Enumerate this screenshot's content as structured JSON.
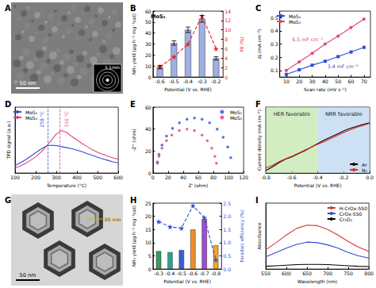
{
  "chart_data": [
    {
      "type": "image",
      "title": "A",
      "scale_bar": "50 nm",
      "inset": "5 1/nm"
    },
    {
      "type": "bar",
      "title": "B",
      "categories": [
        "-0.6",
        "-0.5",
        "-0.4",
        "-0.3",
        "-0.2"
      ],
      "x_label": "Potential (V vs. RHE)",
      "y_label": "NH₃ yield (μg h⁻¹ mg⁻¹cat)",
      "y2_label": "FE (%)",
      "ylim": [
        0,
        60
      ],
      "yticks": [
        0,
        10,
        20,
        30,
        40,
        50,
        60
      ],
      "y2lim": [
        0,
        14
      ],
      "y2ticks": [
        0,
        2,
        4,
        6,
        8,
        10,
        12,
        14
      ],
      "annotations": [
        "MoS₃"
      ],
      "grid": false,
      "series": [
        {
          "type": "bar",
          "color": "#9fb0e3",
          "values": [
            9,
            31,
            43,
            53,
            17
          ],
          "errors": [
            1.5,
            2,
            2.5,
            3,
            1.5
          ]
        },
        {
          "type": "line",
          "axis": "y2",
          "color": "#e8251f",
          "marker": "star",
          "line_style": "dashed",
          "values": [
            2.2,
            4.3,
            7.0,
            13.0,
            6.0
          ]
        }
      ]
    },
    {
      "type": "line",
      "title": "C",
      "x_label": "Scan rate (mV s⁻¹)",
      "y_label": "Δj (mA cm⁻²)",
      "x": [
        10,
        20,
        30,
        40,
        50,
        60,
        70
      ],
      "xlim": [
        5,
        75
      ],
      "xticks": [
        10,
        20,
        30,
        40,
        50,
        60,
        70
      ],
      "ylim": [
        0.05,
        0.55
      ],
      "yticks": [
        0.1,
        0.2,
        0.3,
        0.4,
        0.5
      ],
      "legend": "upper left",
      "grid": false,
      "annotations": [
        {
          "text": "6.5 mF cm⁻²",
          "series": "MoS₃"
        },
        {
          "text": "3.4 mF cm⁻²",
          "series": "MoS₂"
        }
      ],
      "series": [
        {
          "name": "MoS₂",
          "color": "#2b4fd6",
          "marker": "square",
          "values": [
            0.07,
            0.105,
            0.14,
            0.17,
            0.205,
            0.24,
            0.275
          ]
        },
        {
          "name": "MoS₃",
          "color": "#e2447a",
          "marker": "circle",
          "values": [
            0.1,
            0.165,
            0.23,
            0.3,
            0.36,
            0.425,
            0.49
          ]
        }
      ]
    },
    {
      "type": "line",
      "title": "D",
      "x_label": "Temperature (°C)",
      "y_label": "TPD signal (a.u.)",
      "x": [
        100,
        125,
        150,
        175,
        200,
        225,
        250,
        275,
        300,
        325,
        350,
        375,
        400,
        425,
        450,
        475,
        500,
        525,
        550,
        575,
        600
      ],
      "xlim": [
        100,
        600
      ],
      "xticks": [
        100,
        200,
        300,
        400,
        500,
        600
      ],
      "ylim": [
        0,
        1.3
      ],
      "tick_labels": "x",
      "legend": "upper left",
      "grid": false,
      "vlines": [
        {
          "x": 258,
          "label": "258 °C",
          "color": "#2b4fd6"
        },
        {
          "x": 316,
          "label": "316 °C",
          "color": "#e2447a"
        }
      ],
      "series": [
        {
          "name": "MoS₂",
          "color": "#2b4fd6",
          "values": [
            0.15,
            0.2,
            0.26,
            0.33,
            0.4,
            0.47,
            0.53,
            0.55,
            0.54,
            0.52,
            0.5,
            0.48,
            0.45,
            0.42,
            0.38,
            0.35,
            0.31,
            0.28,
            0.25,
            0.22,
            0.2
          ]
        },
        {
          "name": "MoS₃",
          "color": "#e2447a",
          "values": [
            0.1,
            0.14,
            0.19,
            0.25,
            0.32,
            0.41,
            0.52,
            0.64,
            0.77,
            0.84,
            0.8,
            0.72,
            0.65,
            0.58,
            0.52,
            0.46,
            0.41,
            0.37,
            0.33,
            0.3,
            0.27
          ]
        }
      ]
    },
    {
      "type": "scatter",
      "title": "E",
      "x_label": "Z' (ohm)",
      "y_label": "-Z'' (ohm)",
      "xlim": [
        0,
        120
      ],
      "xticks": [
        0,
        20,
        40,
        60,
        80,
        100,
        120
      ],
      "ylim": [
        0,
        60
      ],
      "yticks": [
        0,
        20,
        40,
        60
      ],
      "legend": "upper right",
      "grid": false,
      "series": [
        {
          "name": "MoS₂",
          "color": "#2b4fd6",
          "marker": "circle",
          "x": [
            6,
            8,
            12,
            18,
            26,
            35,
            45,
            55,
            65,
            75,
            85,
            93,
            99,
            103
          ],
          "values": [
            10,
            17,
            25.5,
            33.6,
            40.7,
            45.8,
            49,
            50,
            49,
            45.8,
            40,
            32.5,
            23.7,
            14
          ]
        },
        {
          "name": "MoS₃",
          "color": "#e2447a",
          "marker": "circle",
          "x": [
            6,
            8,
            12,
            18,
            25,
            35,
            45,
            55,
            65,
            72,
            78,
            82,
            84
          ],
          "values": [
            8.9,
            15.2,
            22.6,
            29.5,
            34.6,
            38.7,
            40,
            38.7,
            34.6,
            29.5,
            22.6,
            15.2,
            8.9
          ]
        }
      ]
    },
    {
      "type": "line",
      "title": "F",
      "x_label": "Potential (V vs. RHE)",
      "y_label": "Current density (mA cm⁻²)",
      "x": [
        -0.8,
        -0.75,
        -0.7,
        -0.65,
        -0.6,
        -0.55,
        -0.5,
        -0.45,
        -0.4,
        -0.35,
        -0.3,
        -0.25,
        -0.2,
        -0.15,
        -0.1,
        -0.05,
        0
      ],
      "xlim": [
        -0.8,
        0
      ],
      "xticks": [
        -0.8,
        -0.6,
        -0.4,
        -0.2,
        {
          "value": 0,
          "label": "0.0"
        }
      ],
      "ylim": [
        -10,
        3
      ],
      "tick_labels": "x",
      "legend": "lower right",
      "grid": false,
      "regions": [
        {
          "label": "HER favorable",
          "range": [
            -0.8,
            -0.4
          ],
          "color": "#bfe6a8"
        },
        {
          "label": "NRR favorable",
          "range": [
            -0.4,
            0
          ],
          "color": "#b9d3f0"
        }
      ],
      "series": [
        {
          "name": "Ar",
          "color": "#000000",
          "values": [
            -9.5,
            -8.8,
            -8.0,
            -7.3,
            -6.8,
            -6.2,
            -5.6,
            -4.9,
            -4.2,
            -3.5,
            -2.9,
            -2.3,
            -1.7,
            -1.2,
            -0.8,
            -0.4,
            -0.1
          ]
        },
        {
          "name": "N₂",
          "color": "#e8251f",
          "values": [
            -9.0,
            -8.5,
            -7.8,
            -7.2,
            -6.7,
            -6.1,
            -5.5,
            -4.9,
            -4.3,
            -3.8,
            -3.2,
            -2.6,
            -2.0,
            -1.5,
            -1.0,
            -0.6,
            -0.2
          ]
        }
      ]
    },
    {
      "type": "image",
      "title": "G",
      "scale_bar": "50 nm",
      "size_label": "30 nm"
    },
    {
      "type": "bar",
      "title": "H",
      "categories": [
        "-0.3",
        "-0.4",
        "-0.5",
        "-0.6",
        "-0.7",
        "-0.8"
      ],
      "x_label": "Potential (V vs. RHE)",
      "y_label": "NH₃ yield (μg h⁻¹ mg⁻¹cat)",
      "y2_label": "Faradaic efficiency (%)",
      "ylim": [
        0,
        25
      ],
      "yticks": [
        0,
        5,
        10,
        15,
        20,
        25
      ],
      "y2lim": [
        0,
        2.5
      ],
      "y2ticks": [
        {
          "value": 0,
          "label": "0.0"
        },
        0.5,
        {
          "value": 1,
          "label": "1.0"
        },
        1.5,
        {
          "value": 2,
          "label": "2.0"
        },
        2.5
      ],
      "grid": false,
      "series": [
        {
          "type": "bar",
          "colors": [
            "#3c9a5f",
            "#2aa198",
            "#3b5bdb",
            "#f08c2e",
            "#9c4dcc",
            "#f5a623"
          ],
          "values": [
            6.8,
            6.4,
            7.2,
            15,
            19,
            9
          ]
        },
        {
          "type": "line",
          "axis": "y2",
          "color": "#2a4fd8",
          "marker": "star",
          "line_style": "dashed",
          "values": [
            1.8,
            1.6,
            1.55,
            2.4,
            1.95,
            0.35
          ]
        }
      ]
    },
    {
      "type": "line",
      "title": "I",
      "x_label": "Wavelength (nm)",
      "y_label": "Absorbance",
      "x": [
        550,
        575,
        600,
        625,
        650,
        675,
        700,
        725,
        750,
        775,
        800
      ],
      "xlim": [
        550,
        800
      ],
      "xticks": [
        550,
        600,
        650,
        700,
        750,
        800
      ],
      "ylim": [
        0,
        1.2
      ],
      "tick_labels": "x",
      "legend": "upper right",
      "grid": false,
      "series": [
        {
          "name": "H-CrOx-550",
          "color": "#e0302a",
          "values": [
            0.35,
            0.48,
            0.62,
            0.74,
            0.8,
            0.79,
            0.72,
            0.62,
            0.5,
            0.4,
            0.32
          ]
        },
        {
          "name": "CrOx-550",
          "color": "#2f4fd0",
          "values": [
            0.22,
            0.3,
            0.38,
            0.45,
            0.49,
            0.48,
            0.44,
            0.38,
            0.3,
            0.24,
            0.2
          ]
        },
        {
          "name": "Cr₂O₃",
          "color": "#000000",
          "values": [
            0.05,
            0.06,
            0.07,
            0.08,
            0.085,
            0.085,
            0.08,
            0.07,
            0.06,
            0.05,
            0.045
          ]
        }
      ]
    }
  ]
}
